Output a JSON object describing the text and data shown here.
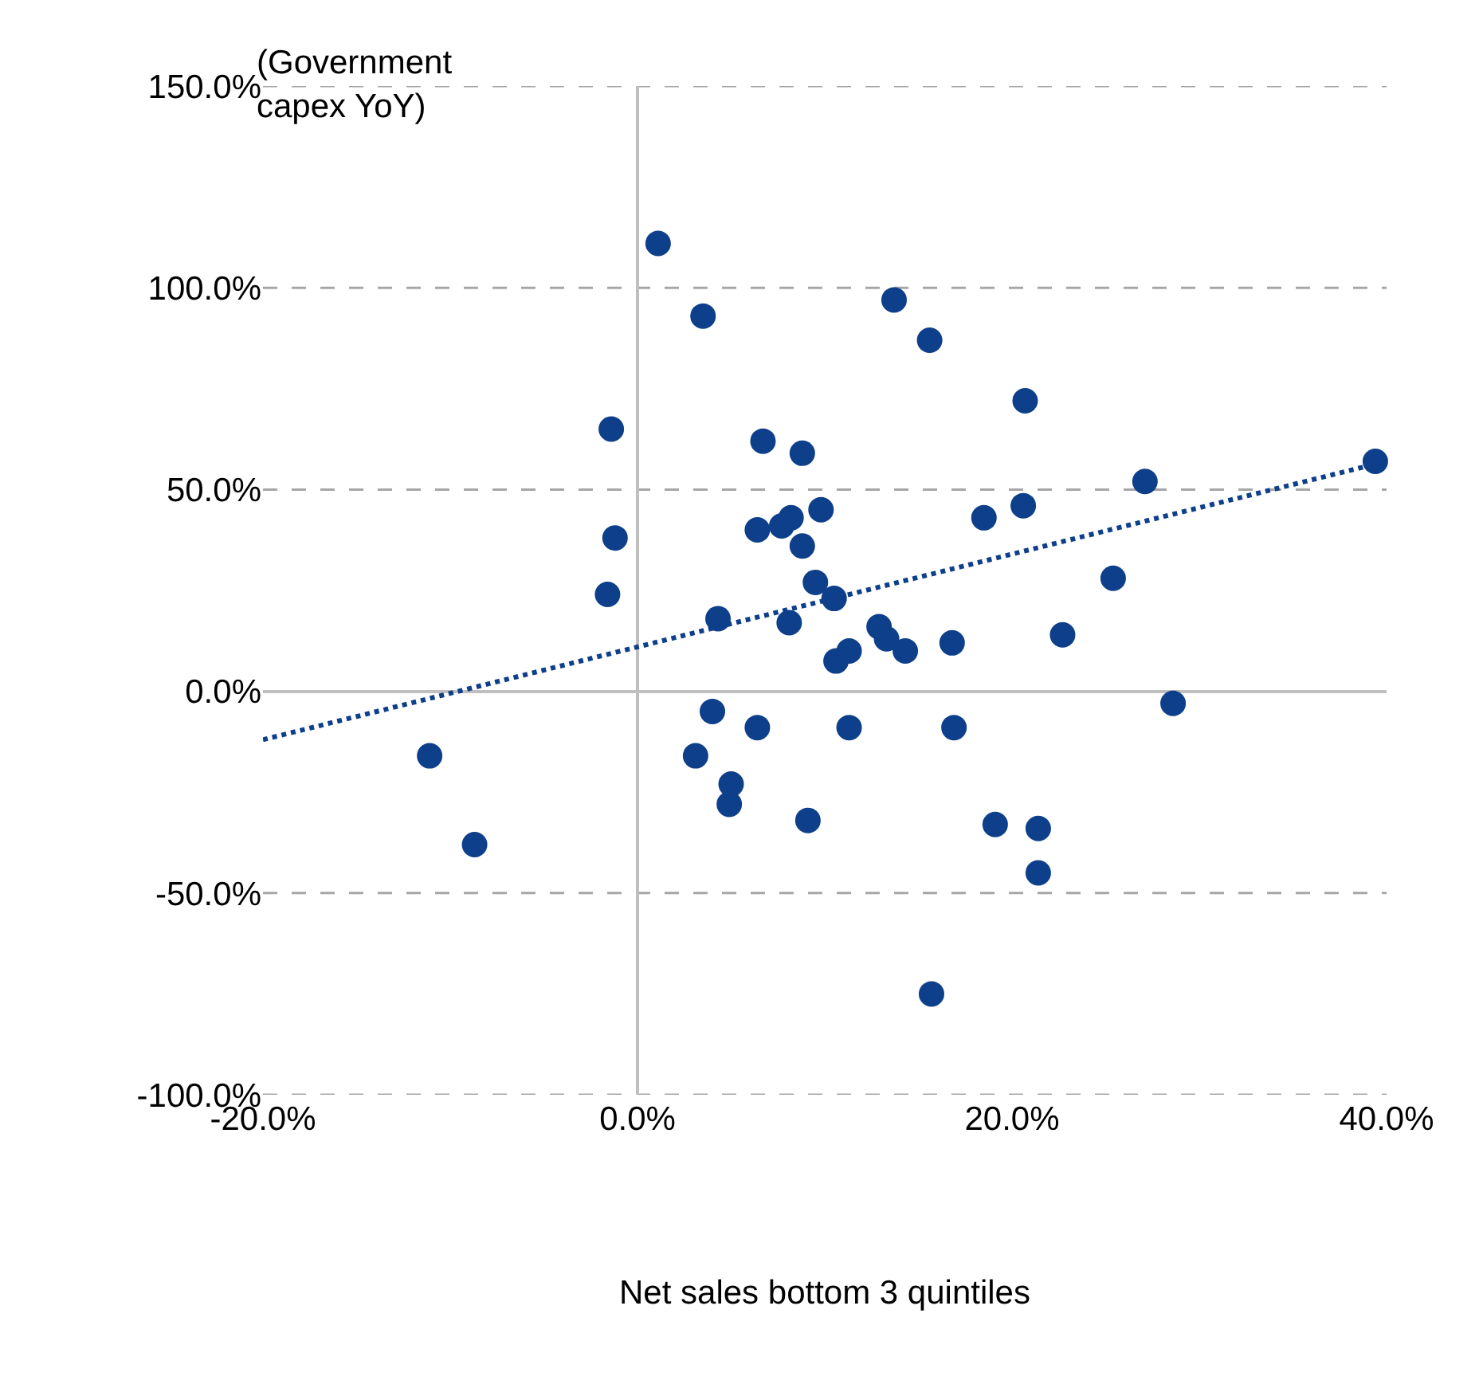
{
  "chart_data": {
    "type": "scatter",
    "xlabel": "Net sales bottom 3 quintiles",
    "ylabel": "(Government\ncapex YoY)",
    "xlim": [
      -20,
      40
    ],
    "ylim": [
      -100,
      150
    ],
    "xticks": [
      {
        "value": -20,
        "label": "-20.0%"
      },
      {
        "value": 0,
        "label": "0.0%"
      },
      {
        "value": 20,
        "label": "20.0%"
      },
      {
        "value": 40,
        "label": "40.0%"
      }
    ],
    "yticks": [
      {
        "value": -100,
        "label": "-100.0%"
      },
      {
        "value": -50,
        "label": "-50.0%"
      },
      {
        "value": 0,
        "label": "0.0%"
      },
      {
        "value": 50,
        "label": "50.0%"
      },
      {
        "value": 100,
        "label": "100.0%"
      },
      {
        "value": 150,
        "label": "150.0%"
      }
    ],
    "grid": "y",
    "marker": "circle",
    "ref_lines": [
      {
        "axis": "x",
        "value": 0,
        "color": "#bfbfbf",
        "line_style": "solid"
      }
    ],
    "series": [
      {
        "color": "#0e3f8a",
        "x": [
          1.1,
          3.5,
          -1.4,
          -1.2,
          -1.6,
          6.7,
          8.8,
          6.4,
          7.7,
          8.2,
          9.8,
          8.8,
          4.3,
          9.5,
          10.5,
          8.1,
          10.6,
          11.3,
          12.9,
          13.3,
          14.3,
          13.7,
          15.6,
          20.7,
          18.5,
          20.6,
          16.8,
          22.7,
          25.4,
          27.1,
          39.4,
          28.6,
          4.0,
          6.4,
          11.3,
          16.9,
          -11.1,
          3.1,
          5.0,
          4.9,
          -8.7,
          9.1,
          19.1,
          21.4,
          21.4,
          15.7
        ],
        "values": [
          111,
          93,
          65,
          38,
          24,
          62,
          59,
          40,
          41,
          43,
          45,
          36,
          18,
          27,
          23,
          17,
          7.5,
          10,
          16,
          13,
          10,
          97,
          87,
          72,
          43,
          46,
          12,
          14,
          28,
          52,
          57,
          -3,
          -5,
          -9,
          -9,
          -9,
          -16,
          -16,
          -23,
          -28,
          -38,
          -32,
          -33,
          -34,
          -45,
          -75
        ]
      },
      {
        "type": "line",
        "color": "#0e3f8a",
        "line_style": "dotted",
        "marker": "none",
        "x": [
          -20,
          40
        ],
        "values": [
          -12,
          57
        ]
      }
    ]
  }
}
